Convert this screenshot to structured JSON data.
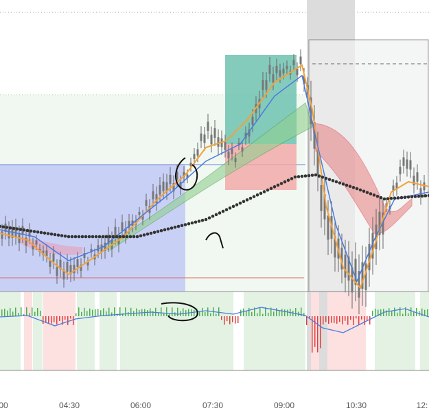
{
  "x_axis": {
    "labels": [
      "00",
      "04:30",
      "06:00",
      "07:30",
      "09:00",
      "10:30",
      "12:"
    ]
  }
}
